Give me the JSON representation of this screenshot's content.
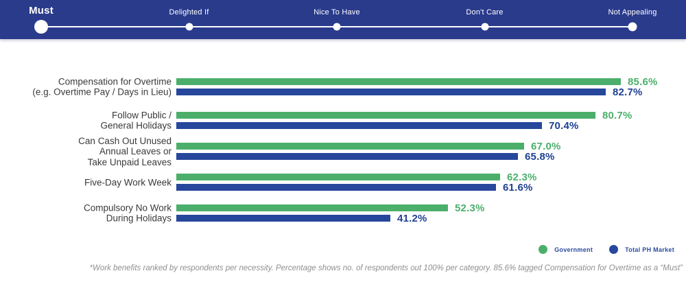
{
  "topbar": {
    "bg_color": "#2A3B8C",
    "stops": [
      {
        "label": "Must",
        "active": true
      },
      {
        "label": "Delighted If",
        "active": false
      },
      {
        "label": "Nice To Have",
        "active": false
      },
      {
        "label": "Don't Care",
        "active": false
      },
      {
        "label": "Not Appealing",
        "active": false
      }
    ]
  },
  "chart_data": {
    "type": "bar",
    "orientation": "horizontal",
    "title": "",
    "xlabel": "",
    "ylabel": "",
    "xlim": [
      0,
      100
    ],
    "grid": false,
    "legend_position": "bottom-right",
    "value_suffix": "%",
    "categories": [
      "Compensation for Overtime (e.g. Overtime Pay / Days in Lieu)",
      "Follow Public / General Holidays",
      "Can Cash Out Unused Annual Leaves or Take Unpaid Leaves",
      "Five-Day Work Week",
      "Compulsory No Work During Holidays"
    ],
    "category_lines": [
      [
        "Compensation for Overtime",
        "(e.g. Overtime Pay / Days in Lieu)"
      ],
      [
        "Follow Public /",
        "General Holidays"
      ],
      [
        "Can Cash Out Unused",
        "Annual Leaves or",
        "Take Unpaid Leaves"
      ],
      [
        "Five-Day Work Week"
      ],
      [
        "Compulsory No Work",
        "During Holidays"
      ]
    ],
    "series": [
      {
        "name": "Government",
        "color": "#4BAF6B",
        "value_color": "#4BAF6B",
        "values": [
          85.6,
          80.7,
          67.0,
          62.3,
          52.3
        ]
      },
      {
        "name": "Total PH Market",
        "color": "#26479C",
        "value_color": "#1E4093",
        "values": [
          82.7,
          70.4,
          65.8,
          61.6,
          41.2
        ]
      }
    ]
  },
  "footnote": "*Work benefits ranked by respondents per necessity. Percentage shows no. of respondents out 100% per category. 85.6% tagged Compensation for Overtime as a “Must”"
}
